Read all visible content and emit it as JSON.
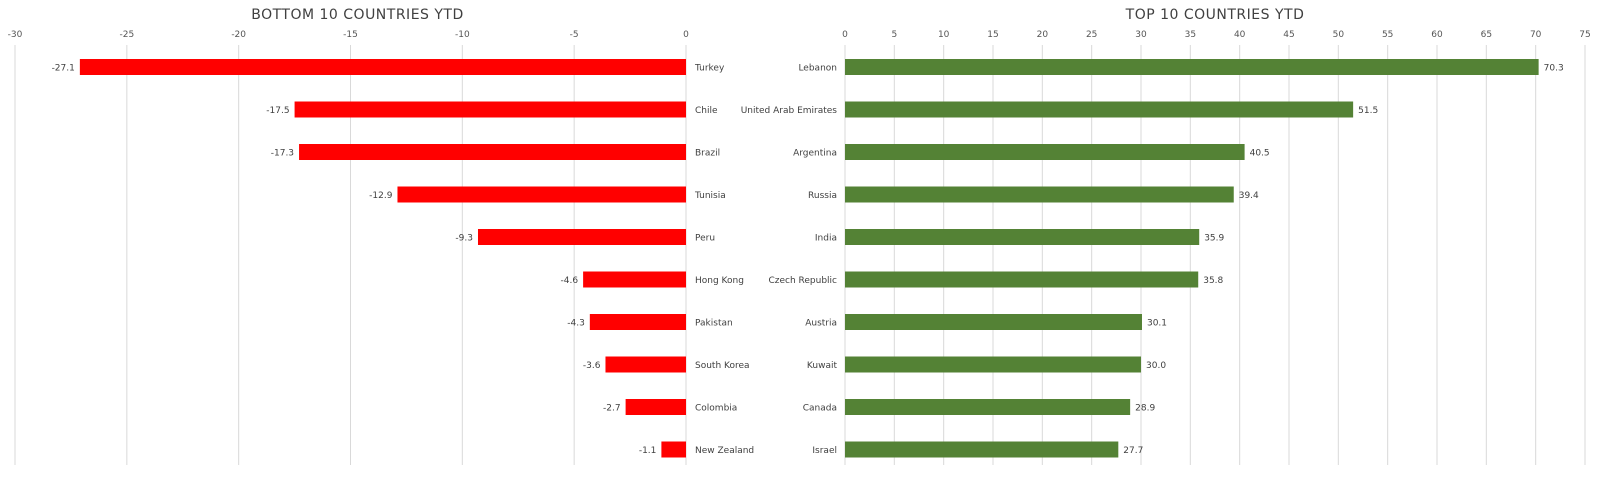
{
  "chart_data": [
    {
      "type": "bar",
      "orientation": "horizontal",
      "title": "BOTTOM 10 COUNTRIES YTD",
      "categories": [
        "Turkey",
        "Chile",
        "Brazil",
        "Tunisia",
        "Peru",
        "Hong Kong",
        "Pakistan",
        "South Korea",
        "Colombia",
        "New Zealand"
      ],
      "values": [
        -27.1,
        -17.5,
        -17.3,
        -12.9,
        -9.3,
        -4.6,
        -4.3,
        -3.6,
        -2.7,
        -1.1
      ],
      "data_labels": [
        "-27.1",
        "-17.5",
        "-17.3",
        "-12.9",
        "-9.3",
        "-4.6",
        "-4.3",
        "-3.6",
        "-2.7",
        "-1.1"
      ],
      "xlim": [
        -30,
        0
      ],
      "ticks": [
        -30,
        -25,
        -20,
        -15,
        -10,
        -5,
        0
      ],
      "color": "#ff0000",
      "grid": true,
      "axis_position": "top"
    },
    {
      "type": "bar",
      "orientation": "horizontal",
      "title": "TOP 10 COUNTRIES YTD",
      "categories": [
        "Lebanon",
        "United Arab Emirates",
        "Argentina",
        "Russia",
        "India",
        "Czech Republic",
        "Austria",
        "Kuwait",
        "Canada",
        "Israel"
      ],
      "values": [
        70.3,
        51.5,
        40.5,
        39.4,
        35.9,
        35.8,
        30.1,
        30.0,
        28.9,
        27.7
      ],
      "data_labels": [
        "70.3",
        "51.5",
        "40.5",
        "39.4",
        "35.9",
        "35.8",
        "30.1",
        "30.0",
        "28.9",
        "27.7"
      ],
      "xlim": [
        0,
        75
      ],
      "ticks": [
        0,
        5,
        10,
        15,
        20,
        25,
        30,
        35,
        40,
        45,
        50,
        55,
        60,
        65,
        70,
        75
      ],
      "color": "#548235",
      "grid": true,
      "axis_position": "top"
    }
  ]
}
